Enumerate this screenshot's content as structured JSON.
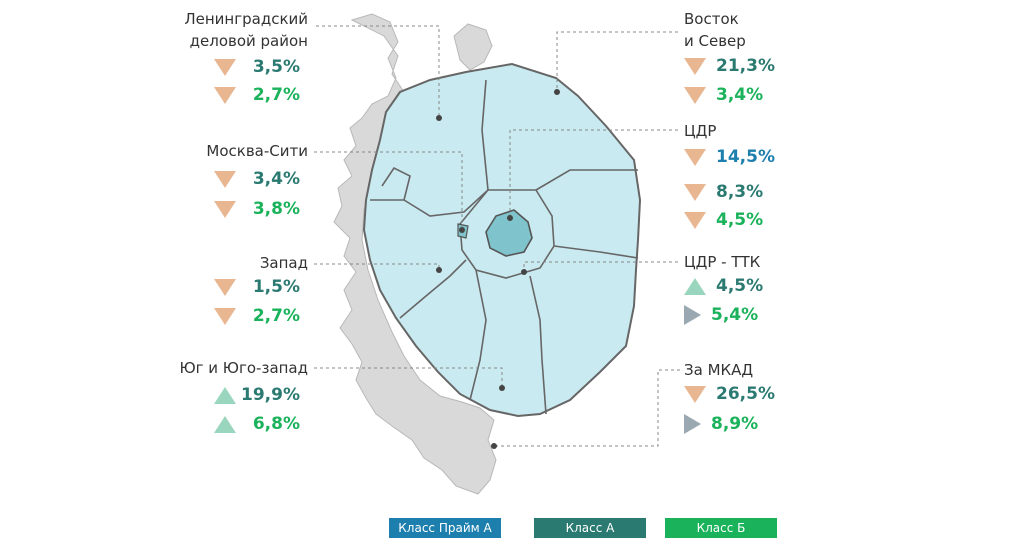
{
  "colors": {
    "prime_a": "#1c7fae",
    "class_a": "#2b7a72",
    "class_b": "#1ab25a",
    "decrease": "#e8b792",
    "increase": "#9ad6bd",
    "neutral": "#9aa8b2"
  },
  "districts": {
    "leningradsky": {
      "line1": "Ленинградский",
      "line2": "деловой район",
      "stats": [
        {
          "arrow": "down-arrow",
          "value": "3,5%",
          "cls": "class_a"
        },
        {
          "arrow": "down-arrow",
          "value": "2,7%",
          "cls": "class_b"
        }
      ]
    },
    "moscow_city": {
      "line1": "Москва-Сити",
      "stats": [
        {
          "arrow": "down-arrow",
          "value": "3,4%",
          "cls": "class_a"
        },
        {
          "arrow": "down-arrow",
          "value": "3,8%",
          "cls": "class_b"
        }
      ]
    },
    "west": {
      "line1": "Запад",
      "stats": [
        {
          "arrow": "down-arrow",
          "value": "1,5%",
          "cls": "class_a"
        },
        {
          "arrow": "down-arrow",
          "value": "2,7%",
          "cls": "class_b"
        }
      ]
    },
    "south": {
      "line1": "Юг и Юго-запад",
      "stats": [
        {
          "arrow": "up-arrow",
          "value": "19,9%",
          "cls": "class_a"
        },
        {
          "arrow": "up-arrow",
          "value": "6,8%",
          "cls": "class_b"
        }
      ]
    },
    "east_north": {
      "line1": "Восток",
      "line2": "и Север",
      "stats": [
        {
          "arrow": "down-arrow",
          "value": "21,3%",
          "cls": "class_a"
        },
        {
          "arrow": "down-arrow",
          "value": "3,4%",
          "cls": "class_b"
        }
      ]
    },
    "cbd": {
      "line1": "ЦДР",
      "stats": [
        {
          "arrow": "down-arrow",
          "value": "14,5%",
          "cls": "prime_a"
        },
        {
          "arrow": "down-arrow",
          "value": "8,3%",
          "cls": "class_a"
        },
        {
          "arrow": "down-arrow",
          "value": "4,5%",
          "cls": "class_b"
        }
      ]
    },
    "cbd_ttk": {
      "line1": "ЦДР - ТТК",
      "stats": [
        {
          "arrow": "up-arrow",
          "value": "4,5%",
          "cls": "class_a"
        },
        {
          "arrow": "side-arrow",
          "value": "5,4%",
          "cls": "class_b"
        }
      ]
    },
    "outside_mkad": {
      "line1": "За МКАД",
      "stats": [
        {
          "arrow": "down-arrow",
          "value": "26,5%",
          "cls": "class_a"
        },
        {
          "arrow": "side-arrow",
          "value": "8,9%",
          "cls": "class_b"
        }
      ]
    }
  },
  "legend": [
    {
      "label": "Класс Прайм А",
      "cls": "prime_a"
    },
    {
      "label": "Класс А",
      "cls": "class_a"
    },
    {
      "label": "Класс Б",
      "cls": "class_b"
    }
  ]
}
